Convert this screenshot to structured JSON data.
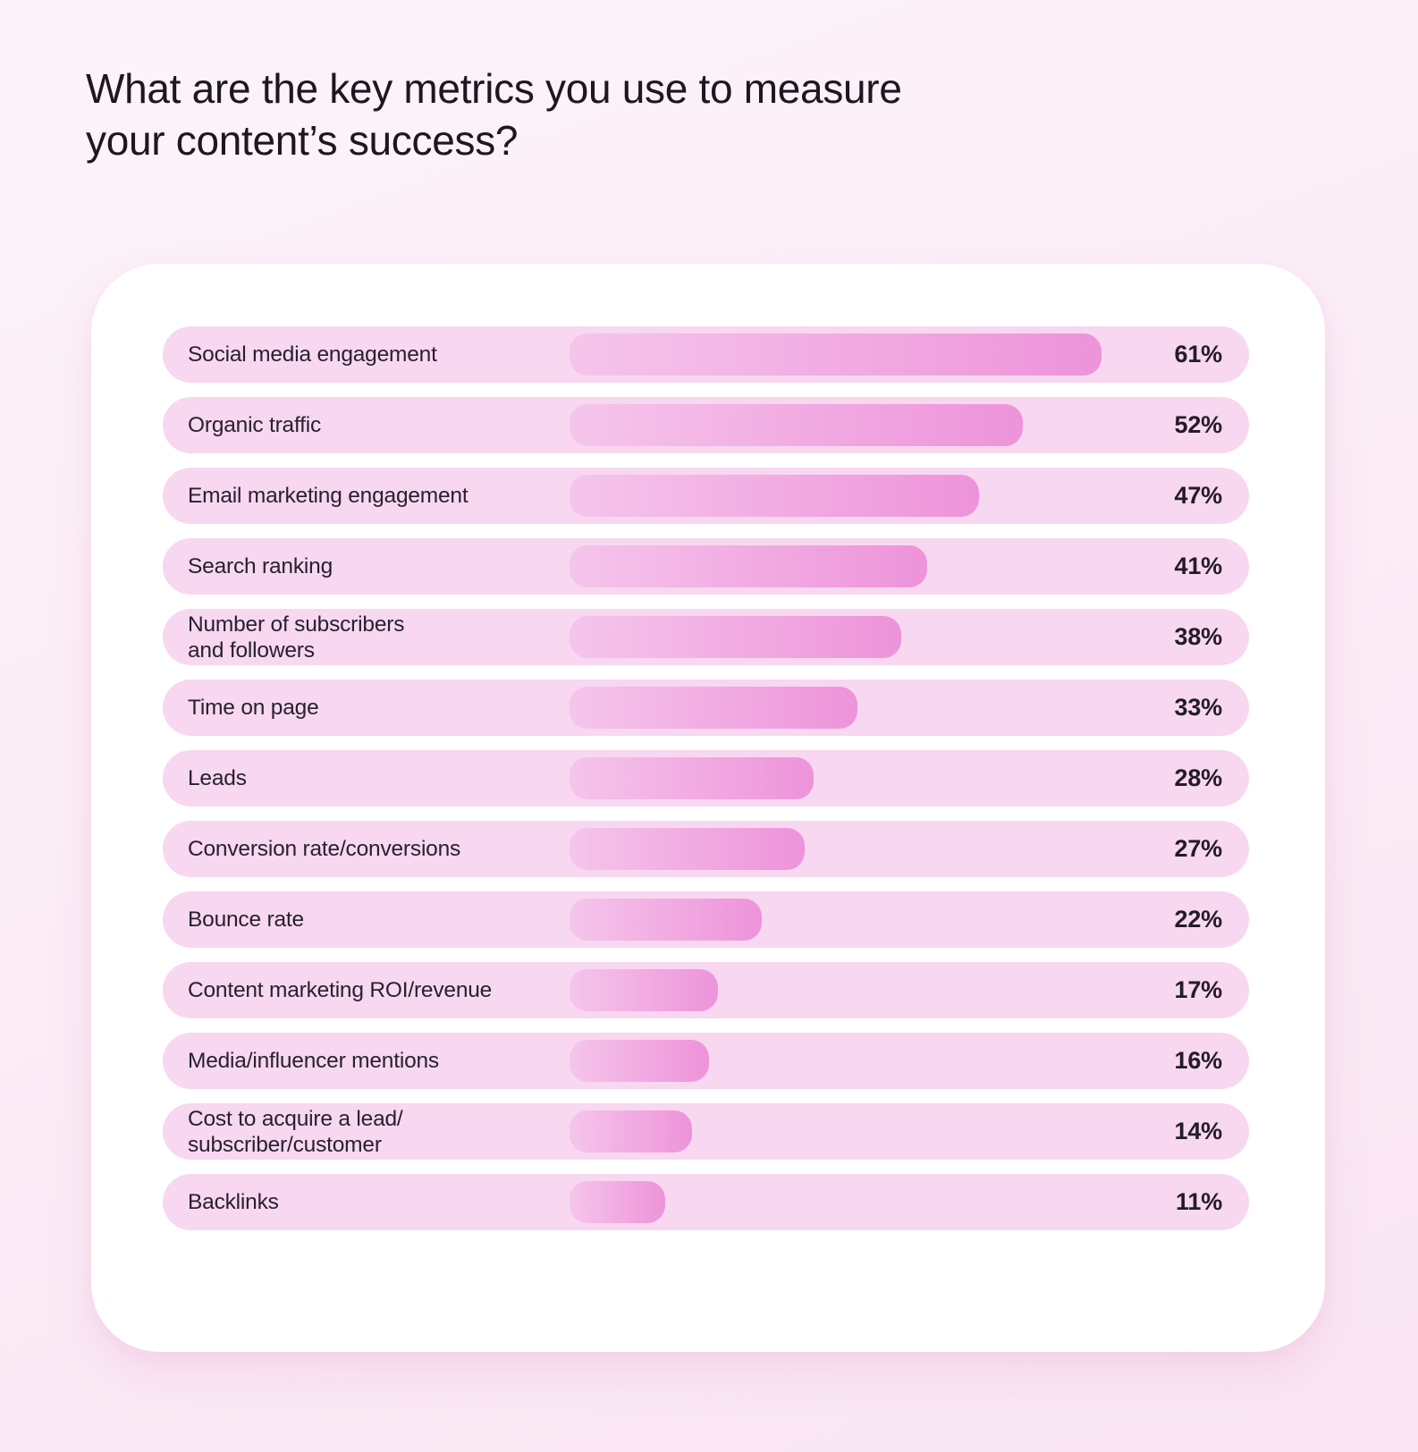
{
  "page": {
    "title": "What are the key metrics you use to measure\nyour content’s success?"
  },
  "colors": {
    "page_bg": "#fdf1f8",
    "card_bg": "#ffffff",
    "track_bg": "#f8d7f0",
    "bar_gradient_start": "#f5c5eb",
    "bar_gradient_end": "#ee93da",
    "text": "#241e29"
  },
  "chart_data": {
    "type": "bar",
    "orientation": "horizontal",
    "title": "What are the key metrics you use to measure your content’s success?",
    "categories": [
      "Social media engagement",
      "Organic traffic",
      "Email marketing engagement",
      "Search ranking",
      "Number of subscribers\nand followers",
      "Time on page",
      "Leads",
      "Conversion rate/conversions",
      "Bounce rate",
      "Content marketing ROI/revenue",
      "Media/influencer mentions",
      "Cost to acquire a lead/\nsubscriber/customer",
      "Backlinks"
    ],
    "values": [
      61,
      52,
      47,
      41,
      38,
      33,
      28,
      27,
      22,
      17,
      16,
      14,
      11
    ],
    "unit": "%",
    "value_labels": [
      "61%",
      "52%",
      "47%",
      "41%",
      "38%",
      "33%",
      "28%",
      "27%",
      "22%",
      "17%",
      "16%",
      "14%",
      "11%"
    ],
    "xlim": [
      0,
      63
    ],
    "grid": false,
    "legend": null,
    "data_labels_position": "right"
  }
}
